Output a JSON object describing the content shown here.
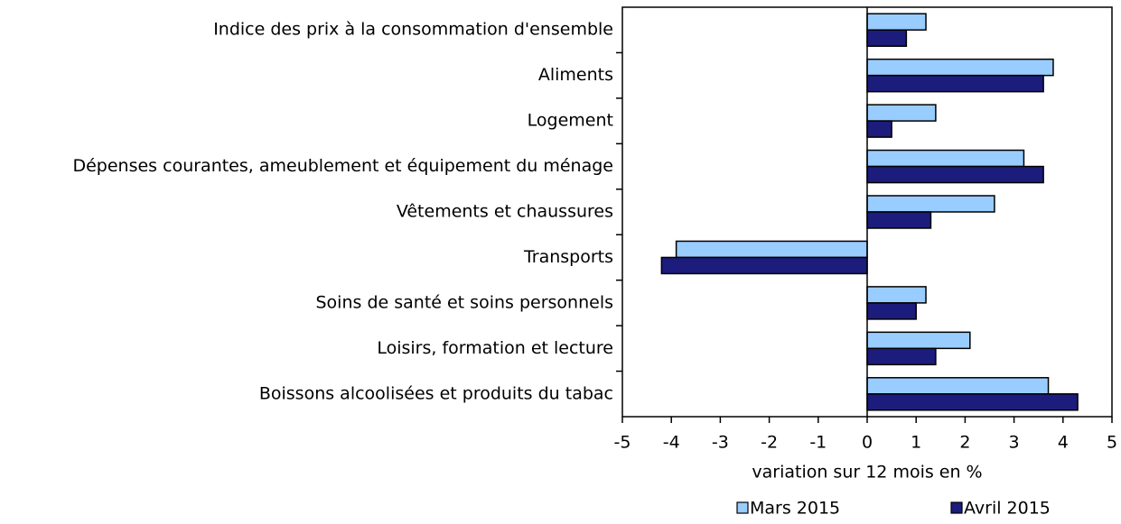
{
  "chart_data": {
    "type": "hbar",
    "categories": [
      "Indice des prix à la consommation d'ensemble",
      "Aliments",
      "Logement",
      "Dépenses courantes, ameublement et équipement du ménage",
      "Vêtements et chaussures",
      "Transports",
      "Soins de santé et soins personnels",
      "Loisirs, formation et lecture",
      "Boissons alcoolisées et produits du tabac"
    ],
    "series": [
      {
        "name": "Mars 2015",
        "color": "#99ccff",
        "values": [
          1.2,
          3.8,
          1.4,
          3.2,
          2.6,
          -3.9,
          1.2,
          2.1,
          3.7
        ]
      },
      {
        "name": "Avril 2015",
        "color": "#1c1c7c",
        "values": [
          0.8,
          3.6,
          0.5,
          3.6,
          1.3,
          -4.2,
          1.0,
          1.4,
          4.3
        ]
      }
    ],
    "xlabel": "variation sur 12 mois en %",
    "xlim": [
      -5,
      5
    ],
    "xticks": [
      -5,
      -4,
      -3,
      -2,
      -1,
      0,
      1,
      2,
      3,
      4,
      5
    ]
  }
}
